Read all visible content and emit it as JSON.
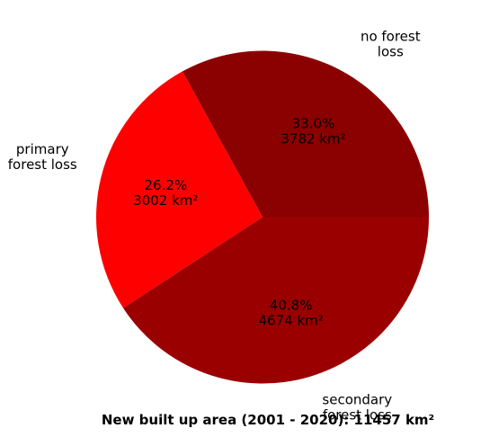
{
  "chart_data": {
    "type": "pie",
    "title": "New built up area (2001 - 2020): 11457 km²",
    "slices": [
      {
        "label": "no forest loss",
        "label_lines": [
          "no forest",
          "loss"
        ],
        "percent": 33.0,
        "value": 3782,
        "value_text": "3782 km²",
        "percent_text": "33.0%",
        "color": "#8b0000"
      },
      {
        "label": "primary forest loss",
        "label_lines": [
          "primary",
          "forest loss"
        ],
        "percent": 26.2,
        "value": 3002,
        "value_text": "3002 km²",
        "percent_text": "26.2%",
        "color": "#ff0000"
      },
      {
        "label": "secondary forest loss",
        "label_lines": [
          "secondary",
          "forest loss"
        ],
        "percent": 40.8,
        "value": 4674,
        "value_text": "4674 km²",
        "percent_text": "40.8%",
        "color": "#9b0000"
      }
    ]
  }
}
